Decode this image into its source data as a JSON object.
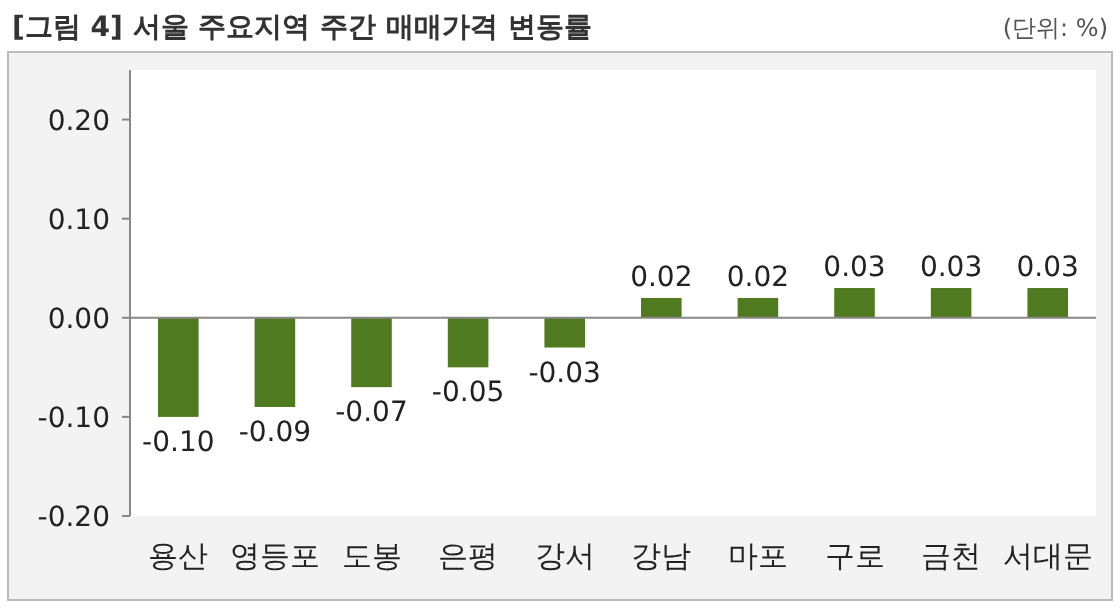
{
  "chart_data": {
    "type": "bar",
    "title": "[그림 4] 서울 주요지역 주간 매매가격 변동률",
    "annotations": [
      "(단위: %)"
    ],
    "categories": [
      "용산",
      "영등포",
      "도봉",
      "은평",
      "강서",
      "강남",
      "마포",
      "구로",
      "금천",
      "서대문"
    ],
    "values": [
      -0.1,
      -0.09,
      -0.07,
      -0.05,
      -0.03,
      0.02,
      0.02,
      0.03,
      0.03,
      0.03
    ],
    "value_labels": [
      "-0.10",
      "-0.09",
      "-0.07",
      "-0.05",
      "-0.03",
      "0.02",
      "0.02",
      "0.03",
      "0.03",
      "0.03"
    ],
    "color": "#4f7a1f",
    "ylim": [
      -0.2,
      0.25
    ],
    "yticks": [
      {
        "value": 0.2,
        "label": "0.20"
      },
      {
        "value": 0.1,
        "label": "0.10"
      },
      {
        "value": 0,
        "label": "0.00"
      },
      {
        "value": -0.1,
        "label": "-0.10"
      },
      {
        "value": -0.2,
        "label": "-0.20"
      }
    ]
  }
}
